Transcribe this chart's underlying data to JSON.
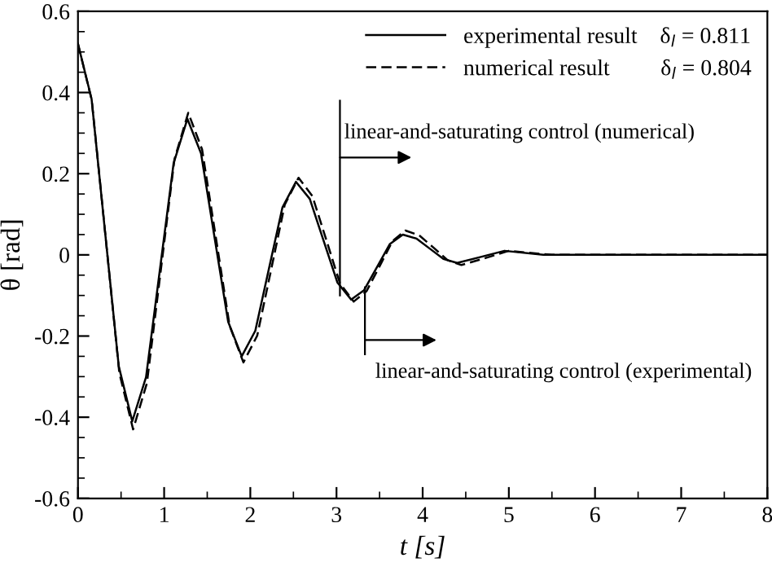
{
  "chart_data": {
    "type": "line",
    "xlabel": "t [s]",
    "ylabel": "θ [rad]",
    "xlim": [
      0,
      8
    ],
    "xticks": [
      0,
      1,
      2,
      3,
      4,
      5,
      6,
      7,
      8
    ],
    "ylim": [
      -0.6,
      0.6
    ],
    "yticks": [
      {
        "value": -0.6,
        "label": "-0.6"
      },
      {
        "value": -0.4,
        "label": "-0.4"
      },
      {
        "value": -0.2,
        "label": "-0.2"
      },
      0,
      0.2,
      0.4,
      0.6
    ],
    "grid": false,
    "legend": "top right",
    "series": [
      {
        "name": "experimental result    δ$_{l}$ = 0.811",
        "color": "#000000",
        "line_style": "solid",
        "x": [
          0,
          0.158,
          0.315,
          0.473,
          0.63,
          0.79,
          0.95,
          1.11,
          1.27,
          1.428,
          1.585,
          1.743,
          1.9,
          2.058,
          2.215,
          2.373,
          2.53,
          2.69,
          2.85,
          3.01,
          3.17,
          3.32,
          3.47,
          3.62,
          3.77,
          3.93,
          4.085,
          4.24,
          4.4,
          4.675,
          4.95,
          5.4,
          8
        ],
        "values": [
          0.52,
          0.384,
          0.055,
          -0.274,
          -0.41,
          -0.301,
          -0.038,
          0.226,
          0.335,
          0.25,
          0.043,
          -0.165,
          -0.25,
          -0.187,
          -0.035,
          0.117,
          0.18,
          0.138,
          0.035,
          -0.068,
          -0.11,
          -0.087,
          -0.03,
          0.027,
          0.05,
          0.04,
          0.015,
          -0.01,
          -0.02,
          -0.005,
          0.01,
          0,
          0
        ]
      },
      {
        "name": "numerical result         δ$_{l}$ = 0.804",
        "color": "#000000",
        "line_style": "dashed",
        "x": [
          0,
          0.16,
          0.32,
          0.48,
          0.64,
          0.8,
          0.96,
          1.12,
          1.28,
          1.44,
          1.6,
          1.76,
          1.92,
          2.08,
          2.24,
          2.4,
          2.56,
          2.72,
          2.88,
          3.04,
          3.2,
          3.35,
          3.5,
          3.65,
          3.8,
          3.96,
          4.125,
          4.29,
          4.45,
          4.725,
          5.0,
          5.5,
          8
        ],
        "values": [
          0.52,
          0.381,
          0.045,
          -0.291,
          -0.43,
          -0.316,
          -0.04,
          0.236,
          0.35,
          0.26,
          0.043,
          -0.175,
          -0.265,
          -0.199,
          -0.038,
          0.124,
          0.19,
          0.145,
          0.038,
          -0.07,
          -0.115,
          -0.089,
          -0.028,
          0.034,
          0.06,
          0.048,
          0.018,
          -0.013,
          -0.025,
          -0.008,
          0.01,
          0,
          0
        ]
      }
    ],
    "annotations": [
      {
        "text": "linear-and-saturating control (numerical)",
        "x": 3.04,
        "y": -0.1
      },
      {
        "text": "linear-and-saturating control (experimental)",
        "x": 3.33,
        "y": -0.08
      }
    ]
  }
}
